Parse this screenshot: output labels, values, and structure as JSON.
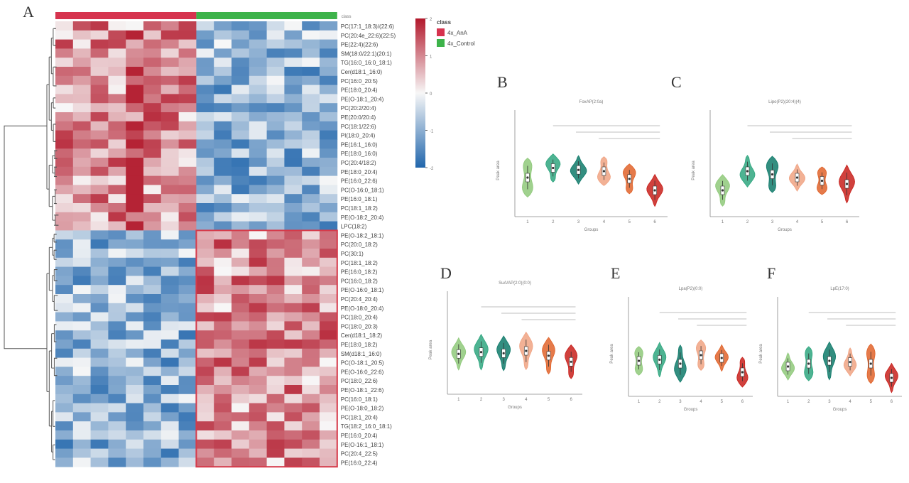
{
  "chart_data": [
    {
      "panel": "A",
      "type": "heatmap",
      "groups": [
        {
          "name": "4x_AnA",
          "color": "#d6334e",
          "columns": 8
        },
        {
          "name": "4x_Control",
          "color": "#3db34a",
          "columns": 8
        }
      ],
      "row_labels": [
        "PC(17:1_18:3)/(22:6)",
        "PC(20:4e_22:6)(22:5)",
        "PE(22:4)(22:6)",
        "SM(18:0/22:1)(20:1)",
        "TG(16:0_16:0_18:1)",
        "Cer(d18:1_16:0)",
        "PC(16:0_20:5)",
        "PE(18:0_20:4)",
        "PE(O-18:1_20:4)",
        "PC(20:2/20:4)",
        "PE(20:0/20:4)",
        "PC(18:1/22:6)",
        "PI(18:0_20:4)",
        "PE(16:1_16:0)",
        "PE(18:0_16:0)",
        "PC(20:4/18:2)",
        "PE(18:0_20:4)",
        "PE(16:0_22:6)",
        "PC(O-16:0_18:1)",
        "PE(16:0_18:1)",
        "PC(18:1_18:2)",
        "PE(O-18:2_20:4)",
        "LPC(18:2)",
        "PE(O-18:2_18:1)",
        "PC(20:0_18:2)",
        "PC(30:1)",
        "PC(18:1_18:2)",
        "PE(16:0_18:2)",
        "PC(16:0_18:2)",
        "PE(O-16:0_18:1)",
        "PC(20:4_20:4)",
        "PE(O-18:0_20:4)",
        "PC(18:0_20:4)",
        "PC(18:0_20:3)",
        "Cer(d18:1_18:2)",
        "PE(18:0_18:2)",
        "SM(d18:1_16:0)",
        "PC(O-18:1_20:5)",
        "PE(O-16:0_22:6)",
        "PC(18:0_22:6)",
        "PE(O-18:1_22:6)",
        "PC(16:0_18:1)",
        "PE(O-18:0_18:2)",
        "PC(18:1_20:4)",
        "TG(18:2_16:0_18:1)",
        "PE(16:0_20:4)",
        "PE(O-16:1_18:1)",
        "PC(20:4_22:5)",
        "PE(16:0_22:4)"
      ],
      "color_scale": {
        "min": -2,
        "max": 2,
        "ticks": [
          2,
          1,
          0,
          -1,
          -2
        ]
      },
      "legend_title": "class",
      "legend_entries": [
        "4x_AnA",
        "4x_Control"
      ]
    },
    {
      "panel": "B",
      "type": "violin",
      "title": "FoxAP(2:0a)",
      "ylabel": "Peak area",
      "xlabel": "Groups",
      "groups": [
        "1",
        "2",
        "3",
        "4",
        "5",
        "6"
      ],
      "medians": [
        0.5,
        0.65,
        0.62,
        0.6,
        0.48,
        0.3
      ],
      "colors": [
        "#8fc97a",
        "#2fa67f",
        "#0f7a6a",
        "#f0a383",
        "#e0632a",
        "#c8201b"
      ]
    },
    {
      "panel": "C",
      "type": "violin",
      "title": "Lipo(P2)(20:4)(4)",
      "ylabel": "Peak area",
      "xlabel": "Groups",
      "groups": [
        "1",
        "2",
        "3",
        "4",
        "5",
        "6"
      ],
      "medians": [
        0.3,
        0.6,
        0.55,
        0.5,
        0.45,
        0.4
      ],
      "colors": [
        "#8fc97a",
        "#2fa67f",
        "#0f7a6a",
        "#f0a383",
        "#e0632a",
        "#c8201b"
      ]
    },
    {
      "panel": "D",
      "type": "violin",
      "title": "SuA/AP(2:0)(0:0)",
      "ylabel": "Peak area",
      "xlabel": "Groups",
      "groups": [
        "1",
        "2",
        "3",
        "4",
        "5",
        "6"
      ],
      "medians": [
        0.55,
        0.58,
        0.56,
        0.6,
        0.52,
        0.42
      ],
      "colors": [
        "#8fc97a",
        "#2fa67f",
        "#0f7a6a",
        "#f0a383",
        "#e0632a",
        "#c8201b"
      ]
    },
    {
      "panel": "E",
      "type": "violin",
      "title": "Lpa(P2)(0:0)",
      "ylabel": "Peak area",
      "xlabel": "Groups",
      "groups": [
        "1",
        "2",
        "3",
        "4",
        "5",
        "6"
      ],
      "medians": [
        0.5,
        0.52,
        0.45,
        0.6,
        0.55,
        0.3
      ],
      "colors": [
        "#8fc97a",
        "#2fa67f",
        "#0f7a6a",
        "#f0a383",
        "#e0632a",
        "#c8201b"
      ]
    },
    {
      "panel": "F",
      "type": "violin",
      "title": "LpE(17:0)",
      "ylabel": "Peak area",
      "xlabel": "Groups",
      "groups": [
        "1",
        "2",
        "3",
        "4",
        "5",
        "6"
      ],
      "medians": [
        0.4,
        0.45,
        0.5,
        0.48,
        0.45,
        0.2
      ],
      "colors": [
        "#8fc97a",
        "#2fa67f",
        "#0f7a6a",
        "#f0a383",
        "#e0632a",
        "#c8201b"
      ]
    }
  ]
}
